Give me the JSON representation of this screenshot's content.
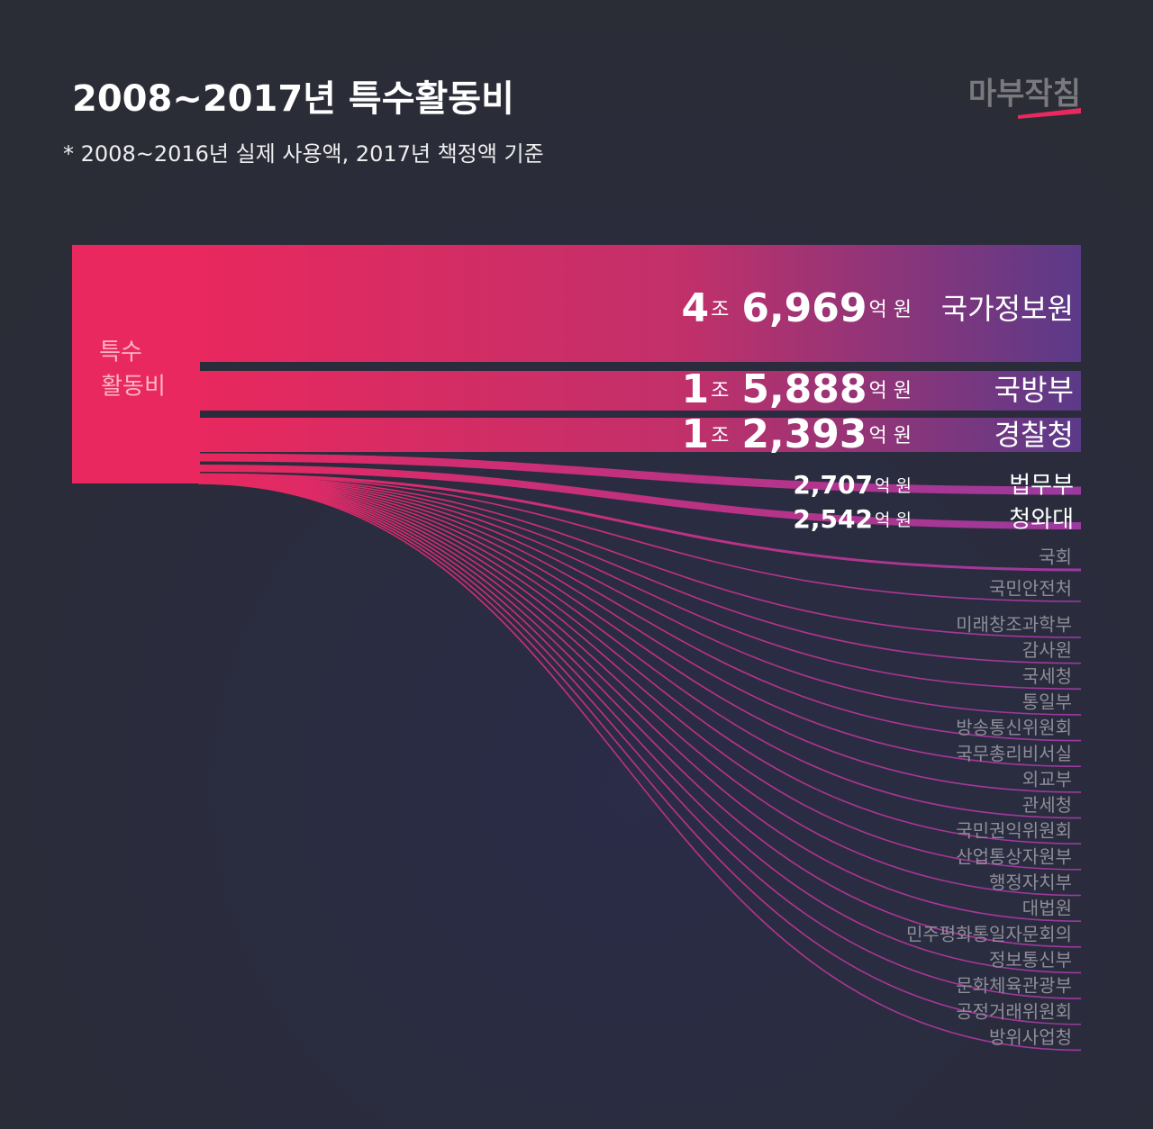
{
  "header": {
    "title": "2008~2017년 특수활동비",
    "subtitle": "* 2008~2016년  실제 사용액, 2017년 책정액 기준",
    "logo": "마부작침"
  },
  "source": {
    "label_lines": [
      "특수",
      "활동비"
    ]
  },
  "flows": [
    {
      "name": "국가정보원",
      "amount": [
        "4",
        "조",
        "6,969",
        "억 원"
      ]
    },
    {
      "name": "국방부",
      "amount": [
        "1",
        "조",
        "5,888",
        "억 원"
      ]
    },
    {
      "name": "경찰청",
      "amount": [
        "1",
        "조",
        "2,393",
        "억 원"
      ]
    },
    {
      "name": "법무부",
      "amount": [
        "2,707",
        "억 원"
      ]
    },
    {
      "name": "청와대",
      "amount": [
        "2,542",
        "억 원"
      ]
    }
  ],
  "others": [
    "국회",
    "국민안전처",
    "미래창조과학부",
    "감사원",
    "국세청",
    "통일부",
    "방송통신위원회",
    "국무총리비서실",
    "외교부",
    "관세청",
    "국민권익위원회",
    "산업통상자원부",
    "행정자치부",
    "대법원",
    "민주평화통일자문회의",
    "정보통신부",
    "문화체육관광부",
    "공정거래위원회",
    "방위사업청"
  ]
}
